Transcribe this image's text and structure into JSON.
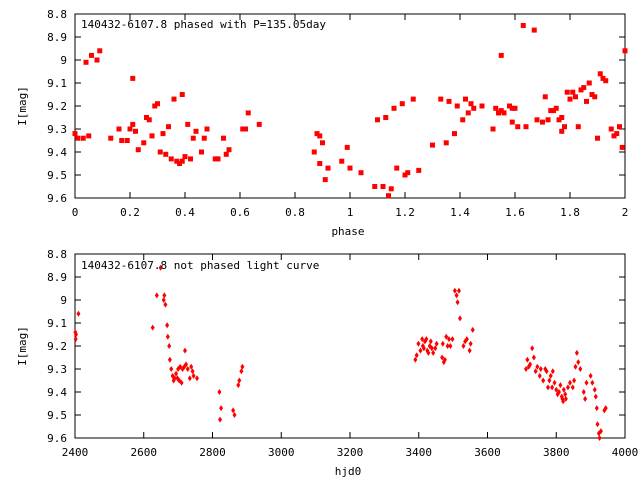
{
  "chart_data": [
    {
      "type": "scatter",
      "title": "140432-6107.8 phased with P=135.05day",
      "xlabel": "phase",
      "ylabel": "I[mag]",
      "xlim": [
        0,
        2
      ],
      "ylim": [
        9.6,
        8.8
      ],
      "y_inverted": true,
      "xticks": [
        "0",
        "0.2",
        "0.4",
        "0.6",
        "0.8",
        "1",
        "1.2",
        "1.4",
        "1.6",
        "1.8",
        "2"
      ],
      "yticks": [
        "8.8",
        "8.9",
        "9",
        "9.1",
        "9.2",
        "9.3",
        "9.4",
        "9.5",
        "9.6"
      ],
      "color": "#ff0000",
      "marker": "filled-square",
      "series": [
        {
          "points": [
            [
              0.0,
              9.32
            ],
            [
              0.01,
              9.34
            ],
            [
              0.03,
              9.34
            ],
            [
              0.04,
              9.01
            ],
            [
              0.05,
              9.33
            ],
            [
              0.06,
              8.98
            ],
            [
              0.08,
              9.0
            ],
            [
              0.09,
              8.96
            ],
            [
              0.13,
              9.34
            ],
            [
              0.16,
              9.3
            ],
            [
              0.17,
              9.35
            ],
            [
              0.19,
              9.35
            ],
            [
              0.2,
              9.3
            ],
            [
              0.21,
              9.08
            ],
            [
              0.21,
              9.28
            ],
            [
              0.22,
              9.31
            ],
            [
              0.23,
              9.39
            ],
            [
              0.25,
              9.36
            ],
            [
              0.26,
              9.25
            ],
            [
              0.27,
              9.26
            ],
            [
              0.28,
              9.33
            ],
            [
              0.29,
              9.2
            ],
            [
              0.3,
              9.19
            ],
            [
              0.31,
              9.4
            ],
            [
              0.32,
              9.32
            ],
            [
              0.33,
              9.41
            ],
            [
              0.34,
              9.29
            ],
            [
              0.35,
              9.43
            ],
            [
              0.36,
              9.17
            ],
            [
              0.37,
              9.44
            ],
            [
              0.38,
              9.45
            ],
            [
              0.39,
              9.44
            ],
            [
              0.39,
              9.15
            ],
            [
              0.4,
              9.42
            ],
            [
              0.41,
              9.28
            ],
            [
              0.42,
              9.43
            ],
            [
              0.43,
              9.34
            ],
            [
              0.44,
              9.31
            ],
            [
              0.46,
              9.4
            ],
            [
              0.47,
              9.34
            ],
            [
              0.48,
              9.3
            ],
            [
              0.51,
              9.43
            ],
            [
              0.52,
              9.43
            ],
            [
              0.54,
              9.34
            ],
            [
              0.55,
              9.41
            ],
            [
              0.56,
              9.39
            ],
            [
              0.61,
              9.3
            ],
            [
              0.62,
              9.3
            ],
            [
              0.63,
              9.23
            ],
            [
              0.67,
              9.28
            ],
            [
              0.87,
              9.4
            ],
            [
              0.88,
              9.32
            ],
            [
              0.89,
              9.45
            ],
            [
              0.89,
              9.33
            ],
            [
              0.9,
              9.36
            ],
            [
              0.91,
              9.52
            ],
            [
              0.92,
              9.47
            ],
            [
              0.97,
              9.44
            ],
            [
              0.99,
              9.38
            ],
            [
              1.0,
              9.47
            ],
            [
              1.04,
              9.49
            ],
            [
              1.09,
              9.55
            ],
            [
              1.1,
              9.26
            ],
            [
              1.12,
              9.55
            ],
            [
              1.13,
              9.25
            ],
            [
              1.14,
              9.59
            ],
            [
              1.15,
              9.56
            ],
            [
              1.16,
              9.21
            ],
            [
              1.17,
              9.47
            ],
            [
              1.19,
              9.19
            ],
            [
              1.2,
              9.5
            ],
            [
              1.21,
              9.49
            ],
            [
              1.23,
              9.17
            ],
            [
              1.25,
              9.48
            ],
            [
              1.3,
              9.37
            ],
            [
              1.33,
              9.17
            ],
            [
              1.35,
              9.36
            ],
            [
              1.36,
              9.18
            ],
            [
              1.38,
              9.32
            ],
            [
              1.39,
              9.2
            ],
            [
              1.41,
              9.26
            ],
            [
              1.42,
              9.17
            ],
            [
              1.43,
              9.23
            ],
            [
              1.44,
              9.19
            ],
            [
              1.45,
              9.21
            ],
            [
              1.48,
              9.2
            ],
            [
              1.52,
              9.3
            ],
            [
              1.53,
              9.21
            ],
            [
              1.54,
              9.23
            ],
            [
              1.55,
              8.98
            ],
            [
              1.55,
              9.22
            ],
            [
              1.56,
              9.23
            ],
            [
              1.58,
              9.2
            ],
            [
              1.59,
              9.27
            ],
            [
              1.59,
              9.21
            ],
            [
              1.6,
              9.21
            ],
            [
              1.61,
              9.29
            ],
            [
              1.63,
              8.85
            ],
            [
              1.64,
              9.29
            ],
            [
              1.67,
              8.87
            ],
            [
              1.68,
              9.26
            ],
            [
              1.7,
              9.27
            ],
            [
              1.71,
              9.16
            ],
            [
              1.72,
              9.26
            ],
            [
              1.73,
              9.22
            ],
            [
              1.74,
              9.22
            ],
            [
              1.75,
              9.21
            ],
            [
              1.76,
              9.26
            ],
            [
              1.77,
              9.31
            ],
            [
              1.77,
              9.25
            ],
            [
              1.78,
              9.29
            ],
            [
              1.79,
              9.14
            ],
            [
              1.8,
              9.17
            ],
            [
              1.81,
              9.14
            ],
            [
              1.82,
              9.16
            ],
            [
              1.83,
              9.29
            ],
            [
              1.84,
              9.13
            ],
            [
              1.85,
              9.12
            ],
            [
              1.86,
              9.18
            ],
            [
              1.87,
              9.1
            ],
            [
              1.88,
              9.15
            ],
            [
              1.89,
              9.16
            ],
            [
              1.9,
              9.34
            ],
            [
              1.91,
              9.06
            ],
            [
              1.92,
              9.08
            ],
            [
              1.93,
              9.09
            ],
            [
              1.95,
              9.3
            ],
            [
              1.96,
              9.33
            ],
            [
              1.97,
              9.32
            ],
            [
              1.98,
              9.29
            ],
            [
              1.99,
              9.38
            ],
            [
              2.0,
              8.96
            ]
          ]
        }
      ]
    },
    {
      "type": "scatter",
      "title": "140432-6107.8 not phased light curve",
      "xlabel": "hjd0",
      "ylabel": "I[mag]",
      "xlim": [
        2400,
        4000
      ],
      "ylim": [
        9.6,
        8.8
      ],
      "y_inverted": true,
      "xticks": [
        "2400",
        "2600",
        "2800",
        "3000",
        "3200",
        "3400",
        "3600",
        "3800",
        "4000"
      ],
      "yticks": [
        "8.8",
        "8.9",
        "9",
        "9.1",
        "9.2",
        "9.3",
        "9.4",
        "9.5",
        "9.6"
      ],
      "color": "#ff0000",
      "marker": "small-diamond",
      "series": [
        {
          "points": [
            [
              2401,
              9.14
            ],
            [
              2402,
              9.17
            ],
            [
              2403,
              9.15
            ],
            [
              2410,
              9.06
            ],
            [
              2626,
              9.12
            ],
            [
              2638,
              8.98
            ],
            [
              2649,
              8.86
            ],
            [
              2658,
              9.0
            ],
            [
              2660,
              8.98
            ],
            [
              2663,
              9.02
            ],
            [
              2668,
              9.11
            ],
            [
              2670,
              9.16
            ],
            [
              2674,
              9.2
            ],
            [
              2676,
              9.26
            ],
            [
              2680,
              9.3
            ],
            [
              2684,
              9.33
            ],
            [
              2687,
              9.35
            ],
            [
              2690,
              9.34
            ],
            [
              2694,
              9.32
            ],
            [
              2698,
              9.34
            ],
            [
              2700,
              9.3
            ],
            [
              2703,
              9.35
            ],
            [
              2706,
              9.29
            ],
            [
              2710,
              9.36
            ],
            [
              2713,
              9.3
            ],
            [
              2718,
              9.29
            ],
            [
              2720,
              9.22
            ],
            [
              2723,
              9.28
            ],
            [
              2728,
              9.3
            ],
            [
              2734,
              9.34
            ],
            [
              2738,
              9.29
            ],
            [
              2742,
              9.31
            ],
            [
              2745,
              9.33
            ],
            [
              2755,
              9.34
            ],
            [
              2820,
              9.4
            ],
            [
              2822,
              9.52
            ],
            [
              2825,
              9.47
            ],
            [
              2860,
              9.48
            ],
            [
              2864,
              9.5
            ],
            [
              2875,
              9.37
            ],
            [
              2878,
              9.35
            ],
            [
              2884,
              9.31
            ],
            [
              2887,
              9.29
            ],
            [
              3390,
              9.26
            ],
            [
              3394,
              9.24
            ],
            [
              3399,
              9.19
            ],
            [
              3405,
              9.22
            ],
            [
              3410,
              9.17
            ],
            [
              3412,
              9.2
            ],
            [
              3415,
              9.21
            ],
            [
              3418,
              9.18
            ],
            [
              3422,
              9.17
            ],
            [
              3425,
              9.22
            ],
            [
              3428,
              9.23
            ],
            [
              3432,
              9.2
            ],
            [
              3435,
              9.18
            ],
            [
              3438,
              9.21
            ],
            [
              3442,
              9.23
            ],
            [
              3448,
              9.21
            ],
            [
              3452,
              9.19
            ],
            [
              3468,
              9.25
            ],
            [
              3470,
              9.19
            ],
            [
              3473,
              9.27
            ],
            [
              3476,
              9.26
            ],
            [
              3480,
              9.16
            ],
            [
              3484,
              9.2
            ],
            [
              3488,
              9.17
            ],
            [
              3492,
              9.2
            ],
            [
              3498,
              9.17
            ],
            [
              3505,
              8.96
            ],
            [
              3510,
              8.98
            ],
            [
              3513,
              9.01
            ],
            [
              3517,
              8.96
            ],
            [
              3520,
              9.08
            ],
            [
              3530,
              9.2
            ],
            [
              3535,
              9.18
            ],
            [
              3540,
              9.17
            ],
            [
              3548,
              9.22
            ],
            [
              3551,
              9.19
            ],
            [
              3557,
              9.13
            ],
            [
              3712,
              9.3
            ],
            [
              3716,
              9.26
            ],
            [
              3720,
              9.29
            ],
            [
              3724,
              9.28
            ],
            [
              3730,
              9.21
            ],
            [
              3735,
              9.25
            ],
            [
              3740,
              9.31
            ],
            [
              3745,
              9.29
            ],
            [
              3752,
              9.33
            ],
            [
              3755,
              9.3
            ],
            [
              3762,
              9.35
            ],
            [
              3768,
              9.3
            ],
            [
              3772,
              9.31
            ],
            [
              3776,
              9.38
            ],
            [
              3780,
              9.35
            ],
            [
              3784,
              9.33
            ],
            [
              3788,
              9.38
            ],
            [
              3790,
              9.31
            ],
            [
              3795,
              9.36
            ],
            [
              3800,
              9.39
            ],
            [
              3804,
              9.41
            ],
            [
              3808,
              9.4
            ],
            [
              3812,
              9.37
            ],
            [
              3816,
              9.42
            ],
            [
              3818,
              9.43
            ],
            [
              3820,
              9.44
            ],
            [
              3822,
              9.39
            ],
            [
              3826,
              9.41
            ],
            [
              3828,
              9.43
            ],
            [
              3834,
              9.38
            ],
            [
              3840,
              9.36
            ],
            [
              3848,
              9.38
            ],
            [
              3852,
              9.35
            ],
            [
              3856,
              9.29
            ],
            [
              3860,
              9.23
            ],
            [
              3864,
              9.27
            ],
            [
              3870,
              9.3
            ],
            [
              3880,
              9.4
            ],
            [
              3884,
              9.43
            ],
            [
              3888,
              9.36
            ],
            [
              3900,
              9.33
            ],
            [
              3905,
              9.36
            ],
            [
              3912,
              9.39
            ],
            [
              3915,
              9.42
            ],
            [
              3918,
              9.47
            ],
            [
              3920,
              9.54
            ],
            [
              3924,
              9.58
            ],
            [
              3926,
              9.6
            ],
            [
              3930,
              9.57
            ],
            [
              3940,
              9.48
            ],
            [
              3944,
              9.47
            ]
          ]
        }
      ]
    }
  ]
}
